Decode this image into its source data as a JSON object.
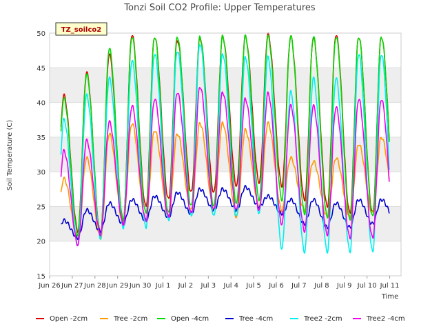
{
  "chart_data": {
    "type": "line",
    "title": "Tonzi Soil CO2 Profile: Upper Temperatures",
    "xlabel": "Time",
    "ylabel": "Soil Temperature (C)",
    "tag": "TZ_soilco2",
    "xlim": [
      0,
      15.5
    ],
    "ylim": [
      15,
      50
    ],
    "yticks": [
      15,
      20,
      25,
      30,
      35,
      40,
      45,
      50
    ],
    "xticks": [
      {
        "x": 0,
        "label": "Jun 26"
      },
      {
        "x": 1,
        "label": "Jun 27"
      },
      {
        "x": 2,
        "label": "Jun 28"
      },
      {
        "x": 3,
        "label": "Jun 29"
      },
      {
        "x": 4,
        "label": "Jun 30"
      },
      {
        "x": 5,
        "label": "Jul 1"
      },
      {
        "x": 6,
        "label": "Jul 2"
      },
      {
        "x": 7,
        "label": "Jul 3"
      },
      {
        "x": 8,
        "label": "Jul 4"
      },
      {
        "x": 9,
        "label": "Jul 5"
      },
      {
        "x": 10,
        "label": "Jul 6"
      },
      {
        "x": 11,
        "label": "Jul 7"
      },
      {
        "x": 12,
        "label": "Jul 8"
      },
      {
        "x": 13,
        "label": "Jul 9"
      },
      {
        "x": 14,
        "label": "Jul 10"
      },
      {
        "x": 15,
        "label": "Jul 11"
      }
    ],
    "background_bands": true,
    "legend_position": "bottom",
    "x_start": 0.5,
    "x_end": 14.98,
    "series": [
      {
        "name": "Open -2cm",
        "color": "#dd0000",
        "min": [
          23,
          21.5,
          21,
          23,
          25,
          26,
          27,
          27,
          28,
          28.5,
          28,
          26,
          25,
          24,
          24,
          25
        ],
        "max": [
          41,
          44.3,
          47,
          49.8,
          49.5,
          49,
          49.3,
          49.5,
          49.5,
          49.8,
          49.5,
          49.3,
          49.8,
          49.5
        ]
      },
      {
        "name": "Tree -2cm",
        "color": "#ff9900",
        "min": [
          21,
          20.5,
          20.5,
          22.5,
          23,
          23.5,
          24.5,
          24.5,
          23.5,
          25,
          24.5,
          24.5,
          23.5,
          23.5,
          24,
          25
        ],
        "max": [
          29,
          32,
          35.5,
          37,
          36,
          35.5,
          37,
          37,
          36,
          37,
          32,
          31.5,
          32,
          34,
          35
        ]
      },
      {
        "name": "Open -4cm",
        "color": "#00dd00",
        "min": [
          22,
          21,
          21,
          23,
          24,
          24,
          25,
          25,
          25.5,
          26,
          26,
          24,
          23.5,
          23,
          23.5,
          24.5
        ],
        "max": [
          40.5,
          44,
          47.8,
          49.5,
          49.5,
          49.5,
          49.5,
          49.5,
          49.5,
          49.5,
          49.5,
          49.5,
          49.5,
          49.5
        ]
      },
      {
        "name": "Tree -4cm",
        "color": "#0000cc",
        "min": [
          20.5,
          20.5,
          21.5,
          22.5,
          23,
          23.5,
          24,
          24.5,
          24.5,
          25,
          24,
          22.5,
          22,
          22,
          22.5,
          23
        ],
        "max": [
          23,
          24.5,
          25.5,
          26,
          26.5,
          27,
          27.5,
          27.5,
          27.8,
          26.5,
          26,
          26,
          25.5,
          26
        ]
      },
      {
        "name": "Tree2 -2cm",
        "color": "#00eeee",
        "min": [
          18.5,
          19.5,
          20.5,
          22,
          22,
          23,
          23.5,
          23.5,
          23.5,
          24,
          19,
          18.5,
          18.5,
          18.5,
          18.5,
          19.5
        ],
        "max": [
          37.5,
          41,
          43.5,
          46,
          47,
          47.5,
          48.5,
          47,
          46.5,
          46.5,
          41.5,
          43.5,
          43.5,
          47
        ]
      },
      {
        "name": "Tree2 -4cm",
        "color": "#ee00ee",
        "min": [
          19,
          19.5,
          21,
          22.5,
          23,
          23.5,
          24,
          24.5,
          24.5,
          24.5,
          22.5,
          21.5,
          21,
          20.5,
          20.5,
          21
        ],
        "max": [
          33,
          34.5,
          37.2,
          39.5,
          40.5,
          41.5,
          42.3,
          41.5,
          40.5,
          41.3,
          39.5,
          39.5,
          39.3,
          40.5
        ]
      }
    ]
  }
}
